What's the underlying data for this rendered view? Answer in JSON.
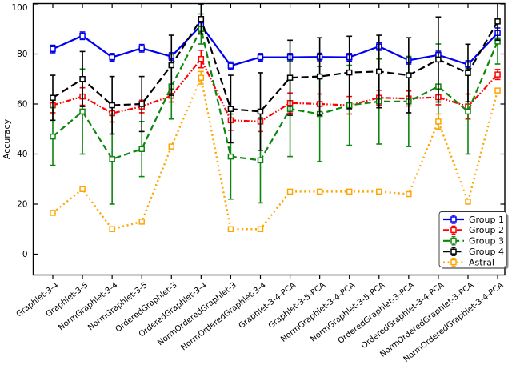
{
  "chart_data": {
    "type": "line",
    "title": "",
    "xlabel": "",
    "ylabel": "Accuracy",
    "ylim": [
      -8.3,
      100.5
    ],
    "yticks": [
      0,
      20,
      40,
      60,
      80,
      100
    ],
    "grid": false,
    "legend_position": "lower right",
    "marker": "open-square",
    "error_bars": true,
    "categories": [
      "Graphlet-3-4",
      "Graphlet-3-5",
      "NormGraphlet-3-4",
      "NormGraphlet-3-5",
      "OrderedGraphlet-3",
      "OrderedGraphlet-3-4",
      "NormOrderedGraphlet-3",
      "NormOrderedGraphlet-3-4",
      "Graphlet-3-4-PCA",
      "Graphlet-3-5-PCA",
      "NormGraphlet-3-4-PCA",
      "NormGraphlet-3-5-PCA",
      "OrderedGraphlet-3-PCA",
      "OrderedGraphlet-3-4-PCA",
      "NormOrderedGraphlet-3-PCA",
      "NormOrderedGraphlet-3-4-PCA"
    ],
    "series": [
      {
        "name": "Group 1",
        "color": "#0000ee",
        "style": "solid",
        "values": [
          82,
          87.3,
          78.7,
          82.3,
          79,
          91.5,
          75.3,
          78.7,
          78.7,
          78.8,
          78.7,
          83,
          77.5,
          79.6,
          75.8,
          88.4
        ],
        "errors": [
          1.5,
          1.5,
          1.5,
          1.5,
          1.5,
          1.5,
          1.5,
          1.5,
          1.5,
          1.5,
          1.5,
          1.5,
          1.5,
          1.5,
          1.5,
          2
        ]
      },
      {
        "name": "Group 2",
        "color": "#ff0000",
        "style": "dash-dot-dot",
        "values": [
          59.5,
          63,
          56.3,
          59,
          63.3,
          78,
          53.5,
          53,
          60.4,
          60,
          59.5,
          62.5,
          62.2,
          62.7,
          59,
          71.8
        ],
        "errors": [
          3,
          3.5,
          3.5,
          2.5,
          2.5,
          3.5,
          4,
          4,
          4,
          4,
          3.5,
          3,
          3,
          3,
          5,
          2
        ]
      },
      {
        "name": "Group 3",
        "color": "#0d860d",
        "style": "dashed",
        "values": [
          47,
          57,
          38,
          42,
          67,
          90,
          39,
          37.5,
          58,
          56,
          59.5,
          61,
          61,
          67,
          57,
          85
        ],
        "errors": [
          11.5,
          17,
          18,
          11,
          13,
          6,
          17,
          17,
          19,
          19,
          16,
          17,
          18,
          17,
          17,
          9
        ]
      },
      {
        "name": "Group 4",
        "color": "#000000",
        "style": "dashed-long",
        "values": [
          62.5,
          70,
          59.5,
          60,
          75.5,
          94,
          58,
          57,
          70.5,
          71,
          72.6,
          73,
          71.5,
          77.8,
          72.4,
          93
        ],
        "errors": [
          9,
          11,
          11.5,
          11,
          12,
          6,
          13.5,
          15.5,
          15,
          15.5,
          14.5,
          14.5,
          15,
          17,
          11.5,
          7.5
        ]
      },
      {
        "name": "Astral",
        "color": "#ffa500",
        "style": "dotted",
        "values": [
          16.5,
          26,
          10,
          13,
          43,
          70.5,
          10,
          10,
          25,
          25,
          25,
          25,
          24,
          53,
          21,
          65.4
        ],
        "errors": [
          0,
          0,
          0,
          0,
          0,
          2.5,
          0,
          0,
          0,
          0,
          0,
          0,
          0,
          3,
          0,
          0
        ]
      }
    ]
  }
}
